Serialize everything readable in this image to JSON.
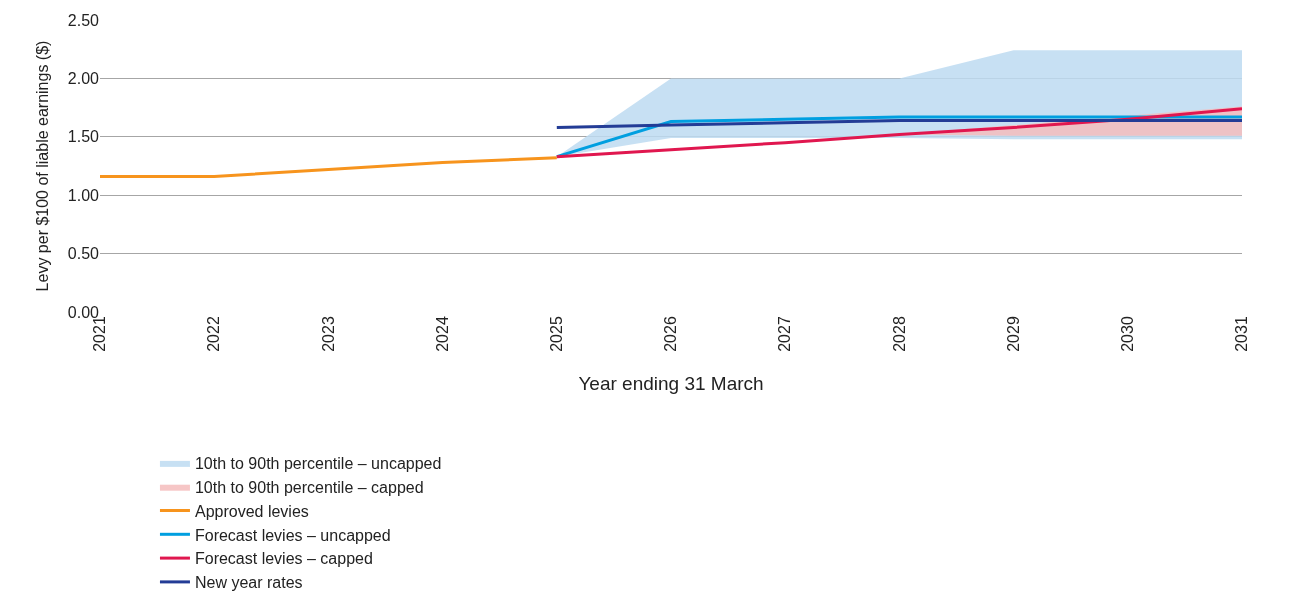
{
  "chart_data": {
    "type": "line",
    "xlabel": "Year ending 31 March",
    "ylabel": "Levy per $100 of liable earnings ($)",
    "categories": [
      "2021",
      "2022",
      "2023",
      "2024",
      "2025",
      "2026",
      "2027",
      "2028",
      "2029",
      "2030",
      "2031"
    ],
    "series": [
      {
        "name": "10th to 90th percentile – uncapped",
        "type": "area",
        "color": "#bddbf1",
        "values": [
          null,
          null,
          null,
          null,
          null,
          null,
          null,
          null,
          null,
          null,
          null
        ],
        "lower": [
          null,
          null,
          null,
          null,
          1.33,
          1.49,
          1.49,
          1.49,
          1.48,
          1.48,
          1.48
        ],
        "upper": [
          null,
          null,
          null,
          null,
          1.33,
          2.0,
          2.0,
          2.0,
          2.24,
          2.24,
          2.24
        ]
      },
      {
        "name": "10th to 90th percentile – capped",
        "type": "area",
        "color": "#f4bcbc",
        "values": [
          null,
          null,
          null,
          null,
          null,
          null,
          null,
          null,
          null,
          null,
          null
        ],
        "lower": [
          null,
          null,
          null,
          null,
          null,
          null,
          null,
          1.52,
          1.51,
          1.51,
          1.51
        ],
        "upper": [
          null,
          null,
          null,
          null,
          null,
          null,
          null,
          1.52,
          1.6,
          1.68,
          1.76
        ]
      },
      {
        "name": "Approved levies",
        "color": "#f7941d",
        "values": [
          1.16,
          1.16,
          1.22,
          1.28,
          1.32,
          null,
          null,
          null,
          null,
          null,
          null
        ]
      },
      {
        "name": "Forecast levies – uncapped",
        "color": "#009fe0",
        "values": [
          null,
          null,
          null,
          null,
          1.33,
          1.63,
          1.65,
          1.67,
          1.67,
          1.67,
          1.67
        ]
      },
      {
        "name": "Forecast levies – capped",
        "color": "#e0174f",
        "values": [
          null,
          null,
          null,
          null,
          1.33,
          1.39,
          1.45,
          1.52,
          1.58,
          1.65,
          1.74
        ]
      },
      {
        "name": "New year rates",
        "color": "#233c96",
        "values": [
          null,
          null,
          null,
          null,
          1.58,
          1.6,
          1.62,
          1.64,
          1.64,
          1.64,
          1.64
        ]
      }
    ],
    "ylim": [
      0,
      2.5
    ],
    "yticks": [
      {
        "value": 0,
        "label": "0.00"
      },
      {
        "value": 0.5,
        "label": "0.50"
      },
      {
        "value": 1,
        "label": "1.00"
      },
      {
        "value": 1.5,
        "label": "1.50"
      },
      {
        "value": 2,
        "label": "2.00"
      },
      {
        "value": 2.5,
        "label": "2.50"
      }
    ],
    "grid": "y",
    "legend": "bottom",
    "line_style": "solid"
  }
}
